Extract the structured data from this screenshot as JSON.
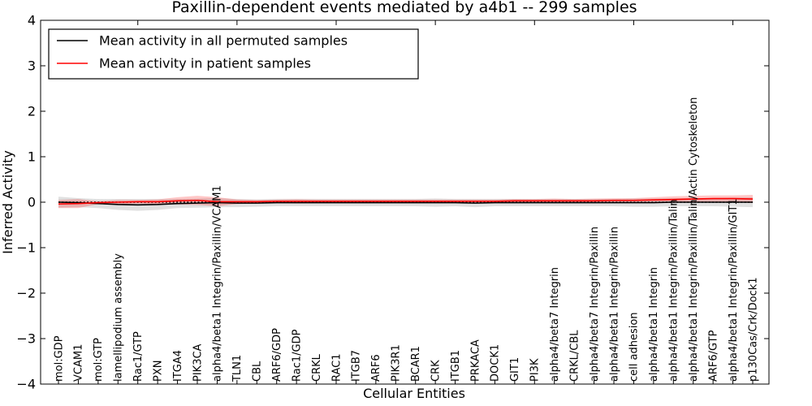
{
  "title": "Paxillin-dependent events mediated by a4b1 -- 299 samples",
  "axes": {
    "xlabel": "Cellular Entities",
    "ylabel": "Inferred Activity",
    "y_tick_labels": [
      "4",
      "3",
      "2",
      "1",
      "0",
      "−1",
      "−2",
      "−3",
      "−4"
    ]
  },
  "chart_data": {
    "type": "line",
    "title": "Paxillin-dependent events mediated by a4b1 -- 299 samples",
    "xlabel": "Cellular Entities",
    "ylabel": "Inferred Activity",
    "ylim": [
      -4,
      4
    ],
    "y_ticks": [
      4,
      3,
      2,
      1,
      0,
      -1,
      -2,
      -3,
      -4
    ],
    "grid": false,
    "legend_position": "upper left",
    "zero_reference_line": {
      "y": 0,
      "style": "dotted",
      "color": "#000000"
    },
    "categories": [
      "mol:GDP",
      "VCAM1",
      "mol:GTP",
      "lamellipodium assembly",
      "Rac1/GTP",
      "PXN",
      "ITGA4",
      "PIK3CA",
      "alpha4/beta1 Integrin/Paxillin/VCAM1",
      "TLN1",
      "CBL",
      "ARF6/GDP",
      "Rac1/GDP",
      "CRKL",
      "RAC1",
      "ITGB7",
      "ARF6",
      "PIK3R1",
      "BCAR1",
      "CRK",
      "ITGB1",
      "PRKACA",
      "DOCK1",
      "GIT1",
      "PI3K",
      "alpha4/beta7 Integrin",
      "CRKL/CBL",
      "alpha4/beta7 Integrin/Paxillin",
      "alpha4/beta1 Integrin/Paxillin",
      "cell adhesion",
      "alpha4/beta1 Integrin",
      "alpha4/beta1 Integrin/Paxillin/Talin",
      "alpha4/beta1 Integrin/Paxillin/Talin/Actin Cytoskeleton",
      "ARF6/GTP",
      "alpha4/beta1 Integrin/Paxillin/GIT1",
      "p130Cas/Crk/Dock1"
    ],
    "series": [
      {
        "name": "Mean activity in all permuted samples",
        "color": "#000000",
        "band_color": "#999999",
        "values": [
          0.0,
          -0.01,
          -0.03,
          -0.05,
          -0.06,
          -0.05,
          -0.03,
          -0.02,
          -0.01,
          -0.02,
          -0.02,
          -0.01,
          -0.01,
          -0.01,
          -0.01,
          -0.01,
          -0.01,
          -0.01,
          -0.01,
          -0.01,
          -0.01,
          -0.02,
          -0.01,
          -0.01,
          -0.01,
          -0.01,
          -0.01,
          -0.01,
          -0.01,
          -0.01,
          -0.01,
          0.0,
          0.0,
          0.0,
          0.0,
          0.0
        ],
        "band_halfwidth": [
          0.12,
          0.1,
          0.1,
          0.12,
          0.13,
          0.12,
          0.1,
          0.1,
          0.1,
          0.09,
          0.08,
          0.08,
          0.08,
          0.08,
          0.08,
          0.08,
          0.08,
          0.08,
          0.08,
          0.09,
          0.08,
          0.09,
          0.08,
          0.08,
          0.08,
          0.08,
          0.08,
          0.08,
          0.08,
          0.09,
          0.09,
          0.09,
          0.09,
          0.09,
          0.1,
          0.11
        ]
      },
      {
        "name": "Mean activity in patient samples",
        "color": "#ff0000",
        "band_color": "#ff0000",
        "values": [
          -0.04,
          -0.03,
          -0.01,
          0.0,
          0.01,
          0.01,
          0.03,
          0.04,
          0.01,
          0.01,
          0.01,
          0.02,
          0.02,
          0.02,
          0.02,
          0.02,
          0.02,
          0.02,
          0.02,
          0.02,
          0.02,
          0.02,
          0.02,
          0.03,
          0.03,
          0.03,
          0.03,
          0.03,
          0.04,
          0.04,
          0.05,
          0.06,
          0.07,
          0.08,
          0.08,
          0.07
        ],
        "band_halfwidth": [
          0.09,
          0.1,
          0.03,
          0.05,
          0.04,
          0.05,
          0.08,
          0.1,
          0.1,
          0.05,
          0.04,
          0.04,
          0.05,
          0.04,
          0.04,
          0.04,
          0.04,
          0.04,
          0.04,
          0.04,
          0.04,
          0.04,
          0.04,
          0.04,
          0.04,
          0.05,
          0.04,
          0.05,
          0.05,
          0.05,
          0.06,
          0.07,
          0.07,
          0.07,
          0.07,
          0.09
        ]
      }
    ]
  }
}
